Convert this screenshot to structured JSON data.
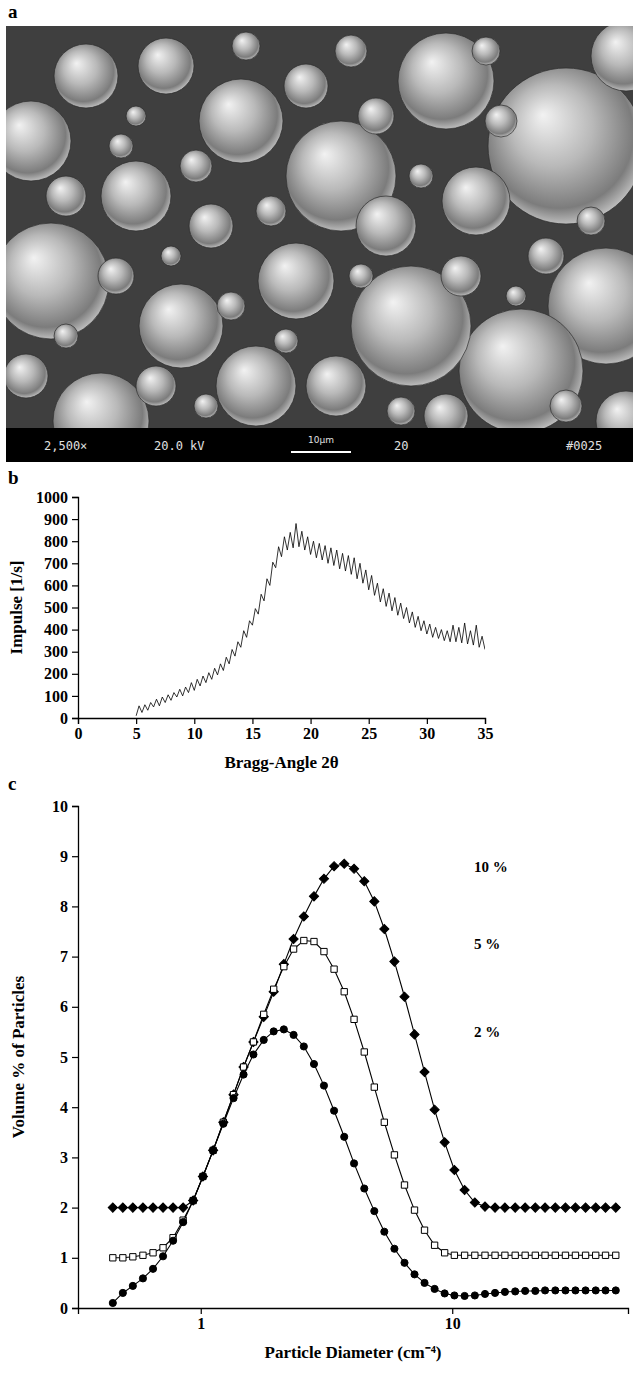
{
  "image": {
    "label": "a",
    "info_bar": [
      "2,500×",
      "20.0 kV",
      "20",
      "#0025"
    ],
    "scale_bar": "10µm"
  },
  "chart_data": [
    {
      "label": "b",
      "type": "line",
      "color": "#000000",
      "xlabel": "Bragg-Angle 2θ",
      "ylabel": "Impulse [1/s]",
      "xlim": [
        0,
        35
      ],
      "ylim": [
        0,
        1000
      ],
      "xticks": [
        0,
        5,
        10,
        15,
        20,
        25,
        30,
        35
      ],
      "yticks": [
        0,
        100,
        200,
        300,
        400,
        500,
        600,
        700,
        800,
        900,
        1000
      ],
      "x": [
        5,
        5.25,
        5.5,
        5.75,
        6,
        6.25,
        6.5,
        6.75,
        7,
        7.25,
        7.5,
        7.75,
        8,
        8.25,
        8.5,
        8.75,
        9,
        9.25,
        9.5,
        9.75,
        10,
        10.25,
        10.5,
        10.75,
        11,
        11.25,
        11.5,
        11.75,
        12,
        12.25,
        12.5,
        12.75,
        13,
        13.25,
        13.5,
        13.75,
        14,
        14.25,
        14.5,
        14.75,
        15,
        15.25,
        15.5,
        15.75,
        16,
        16.25,
        16.5,
        16.75,
        17,
        17.25,
        17.5,
        17.75,
        18,
        18.25,
        18.5,
        18.75,
        19,
        19.25,
        19.5,
        19.75,
        20,
        20.25,
        20.5,
        20.75,
        21,
        21.25,
        21.5,
        21.75,
        22,
        22.25,
        22.5,
        22.75,
        23,
        23.25,
        23.5,
        23.75,
        24,
        24.25,
        24.5,
        24.75,
        25,
        25.25,
        25.5,
        25.75,
        26,
        26.25,
        26.5,
        26.75,
        27,
        27.25,
        27.5,
        27.75,
        28,
        28.25,
        28.5,
        28.75,
        29,
        29.25,
        29.5,
        29.75,
        30,
        30.25,
        30.5,
        30.75,
        31,
        31.25,
        31.5,
        31.75,
        32,
        32.25,
        32.5,
        32.75,
        33,
        33.25,
        33.5,
        33.75,
        34,
        34.25,
        34.5,
        34.75,
        35
      ],
      "values": [
        10,
        55,
        25,
        60,
        35,
        70,
        50,
        85,
        55,
        95,
        70,
        105,
        80,
        115,
        95,
        130,
        100,
        140,
        115,
        160,
        125,
        175,
        145,
        190,
        160,
        205,
        175,
        225,
        195,
        245,
        215,
        275,
        245,
        310,
        280,
        345,
        320,
        395,
        365,
        440,
        420,
        495,
        470,
        560,
        530,
        630,
        600,
        705,
        680,
        775,
        730,
        820,
        760,
        840,
        770,
        880,
        775,
        845,
        760,
        820,
        740,
        800,
        725,
        790,
        715,
        780,
        700,
        770,
        690,
        760,
        675,
        745,
        665,
        735,
        650,
        725,
        630,
        700,
        610,
        670,
        580,
        645,
        555,
        610,
        525,
        585,
        505,
        565,
        485,
        545,
        465,
        520,
        450,
        500,
        430,
        480,
        410,
        460,
        395,
        440,
        380,
        425,
        365,
        410,
        360,
        400,
        350,
        395,
        345,
        420,
        345,
        410,
        340,
        430,
        335,
        395,
        330,
        420,
        320,
        370,
        310
      ]
    },
    {
      "label": "c",
      "type": "line",
      "log": "x",
      "xlabel": "Particle Diameter (cm⁻⁴)",
      "ylabel": "Volume % of Particles",
      "xlim": [
        0.325,
        50
      ],
      "ylim": [
        0,
        10
      ],
      "xticks": [
        1,
        10
      ],
      "yticks": [
        0,
        1,
        2,
        3,
        4,
        5,
        6,
        7,
        8,
        9,
        10
      ],
      "x": [
        0.447,
        0.49,
        0.537,
        0.589,
        0.646,
        0.708,
        0.776,
        0.851,
        0.933,
        1.02,
        1.12,
        1.23,
        1.35,
        1.48,
        1.62,
        1.78,
        1.95,
        2.14,
        2.34,
        2.57,
        2.82,
        3.09,
        3.39,
        3.72,
        4.07,
        4.47,
        4.9,
        5.37,
        5.89,
        6.46,
        7.08,
        7.76,
        8.51,
        9.33,
        10.2,
        11.2,
        12.3,
        13.5,
        14.8,
        16.2,
        17.8,
        19.5,
        21.4,
        23.4,
        25.7,
        28.2,
        30.9,
        33.9,
        37.2,
        40.7,
        44.7
      ],
      "series": [
        {
          "name": "10 %",
          "color": "#000000",
          "marker": "diamond",
          "values": [
            2.0,
            2.0,
            2.0,
            2.0,
            2.0,
            2.0,
            2.0,
            2.0,
            2.14,
            2.62,
            3.14,
            3.7,
            4.25,
            4.8,
            5.3,
            5.8,
            6.3,
            6.85,
            7.35,
            7.8,
            8.2,
            8.55,
            8.8,
            8.85,
            8.75,
            8.5,
            8.1,
            7.55,
            6.9,
            6.2,
            5.45,
            4.7,
            3.95,
            3.3,
            2.75,
            2.35,
            2.1,
            2.02,
            2.0,
            2.0,
            2.0,
            2.0,
            2.0,
            2.0,
            2.0,
            2.0,
            2.0,
            2.0,
            2.0,
            2.0,
            2.0
          ]
        },
        {
          "name": "5 %",
          "color": "#000000",
          "marker": "square-open",
          "values": [
            1.0,
            1.0,
            1.02,
            1.05,
            1.1,
            1.2,
            1.4,
            1.75,
            2.14,
            2.62,
            3.14,
            3.7,
            4.25,
            4.8,
            5.3,
            5.85,
            6.35,
            6.8,
            7.15,
            7.32,
            7.3,
            7.1,
            6.75,
            6.3,
            5.75,
            5.1,
            4.4,
            3.7,
            3.05,
            2.45,
            1.95,
            1.55,
            1.25,
            1.1,
            1.05,
            1.05,
            1.05,
            1.05,
            1.05,
            1.05,
            1.05,
            1.05,
            1.05,
            1.05,
            1.05,
            1.05,
            1.05,
            1.05,
            1.05,
            1.05,
            1.05
          ]
        },
        {
          "name": "2 %",
          "color": "#000000",
          "marker": "circle",
          "values": [
            0.1,
            0.3,
            0.44,
            0.59,
            0.78,
            1.03,
            1.34,
            1.71,
            2.14,
            2.62,
            3.14,
            3.67,
            4.18,
            4.65,
            5.05,
            5.34,
            5.51,
            5.55,
            5.44,
            5.21,
            4.86,
            4.43,
            3.93,
            3.41,
            2.88,
            2.38,
            1.93,
            1.52,
            1.18,
            0.9,
            0.67,
            0.5,
            0.38,
            0.29,
            0.25,
            0.24,
            0.25,
            0.28,
            0.3,
            0.32,
            0.33,
            0.34,
            0.34,
            0.35,
            0.35,
            0.35,
            0.35,
            0.35,
            0.35,
            0.35,
            0.35
          ]
        }
      ]
    }
  ]
}
